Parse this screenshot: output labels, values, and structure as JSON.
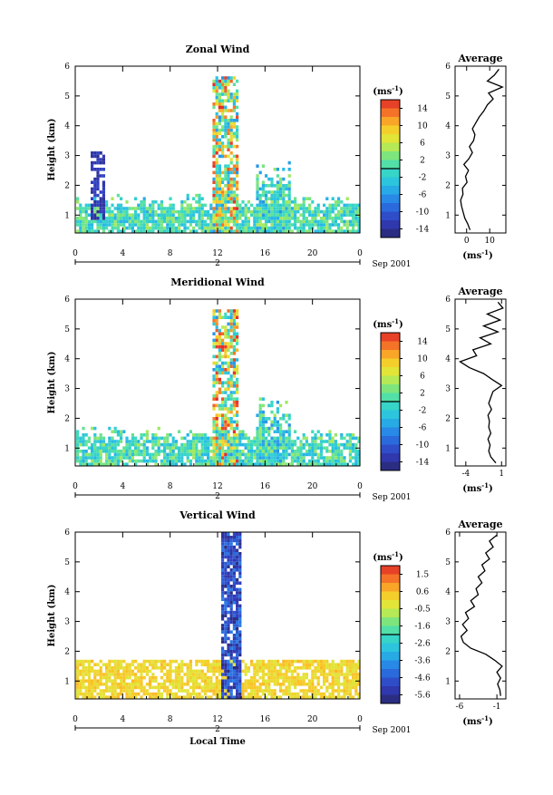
{
  "chart_data": [
    {
      "type": "heatmap",
      "title": "Zonal Wind",
      "ylabel": "Height (km)",
      "yticks": [
        "1",
        "2",
        "3",
        "4",
        "5",
        "6"
      ],
      "xticks": [
        "0",
        "4",
        "8",
        "12",
        "16",
        "20",
        "0"
      ],
      "ylim": [
        0.4,
        6.0
      ],
      "xlim": [
        0,
        24
      ],
      "date_day": "2",
      "date_label": "Sep 2001",
      "colorbar": {
        "unit": "(ms",
        "unit_exp": "-1",
        "unit_close": ")",
        "ticks": [
          "14",
          "10",
          "6",
          "2",
          "-2",
          "-6",
          "-10",
          "-14"
        ],
        "range": [
          -16,
          16
        ]
      },
      "profile": {
        "title": "Average",
        "xticks": [
          "0",
          "10"
        ],
        "xlim": [
          -5,
          17
        ],
        "xlabel": "(ms",
        "xlabel_exp": "-1",
        "xlabel_close": ")",
        "heights": [
          0.5,
          0.7,
          0.9,
          1.1,
          1.3,
          1.5,
          1.7,
          1.9,
          2.1,
          2.3,
          2.5,
          2.7,
          2.9,
          3.1,
          3.3,
          3.5,
          3.7,
          3.9,
          4.1,
          4.3,
          4.5,
          4.7,
          4.9,
          5.1,
          5.3,
          5.5,
          5.7,
          5.9
        ],
        "values": [
          1.5,
          0.5,
          -0.8,
          -1.5,
          -2.2,
          -2.6,
          -1.6,
          -1.8,
          0.2,
          -0.5,
          0.8,
          -1.2,
          1.0,
          2.5,
          1.2,
          3.0,
          3.6,
          2.5,
          4.0,
          5.5,
          7.5,
          9.0,
          11.5,
          9.5,
          15.5,
          9.0,
          12.0,
          14.0
        ]
      }
    },
    {
      "type": "heatmap",
      "title": "Meridional Wind",
      "ylabel": "Height (km)",
      "yticks": [
        "1",
        "2",
        "3",
        "4",
        "5",
        "6"
      ],
      "xticks": [
        "0",
        "4",
        "8",
        "12",
        "16",
        "20",
        "0"
      ],
      "ylim": [
        0.4,
        6.0
      ],
      "xlim": [
        0,
        24
      ],
      "date_day": "2",
      "date_label": "Sep 2001",
      "colorbar": {
        "unit": "(ms",
        "unit_exp": "-1",
        "unit_close": ")",
        "ticks": [
          "14",
          "10",
          "6",
          "2",
          "-2",
          "-6",
          "-10",
          "-14"
        ],
        "range": [
          -16,
          16
        ]
      },
      "profile": {
        "title": "Average",
        "xticks": [
          "-4",
          "1"
        ],
        "xlim": [
          -5.5,
          1.6
        ],
        "xlabel": "(ms",
        "xlabel_exp": "-1",
        "xlabel_close": ")",
        "heights": [
          0.5,
          0.7,
          0.9,
          1.1,
          1.3,
          1.5,
          1.7,
          1.9,
          2.1,
          2.3,
          2.5,
          2.7,
          2.9,
          3.1,
          3.3,
          3.5,
          3.7,
          3.9,
          4.1,
          4.3,
          4.5,
          4.7,
          4.9,
          5.1,
          5.3,
          5.5,
          5.7,
          5.9
        ],
        "values": [
          0.2,
          -0.5,
          -0.8,
          -0.6,
          -0.9,
          -0.5,
          -0.8,
          -0.7,
          -0.9,
          -0.4,
          -0.8,
          -0.5,
          -0.2,
          1.0,
          -0.3,
          -1.5,
          -3.5,
          -4.8,
          -2.5,
          -3.0,
          -0.5,
          -2.0,
          0.5,
          -1.5,
          0.8,
          -1.0,
          1.2,
          0.5
        ]
      }
    },
    {
      "type": "heatmap",
      "title": "Vertical Wind",
      "ylabel": "Height (km)",
      "xlabel": "Local Time",
      "yticks": [
        "1",
        "2",
        "3",
        "4",
        "5",
        "6"
      ],
      "xticks": [
        "0",
        "4",
        "8",
        "12",
        "16",
        "20",
        "0"
      ],
      "ylim": [
        0.4,
        6.0
      ],
      "xlim": [
        0,
        24
      ],
      "date_day": "2",
      "date_label": "Sep 2001",
      "colorbar": {
        "unit": "(ms",
        "unit_exp": "-1",
        "unit_close": ")",
        "ticks": [
          "1.5",
          "0.6",
          "-0.5",
          "-1.6",
          "-2.6",
          "-3.6",
          "-4.6",
          "-5.6"
        ],
        "range": [
          -6.1,
          2.0
        ]
      },
      "profile": {
        "title": "Average",
        "xticks": [
          "-6",
          "-1"
        ],
        "xlim": [
          -6.6,
          0.2
        ],
        "xlabel": "(ms",
        "xlabel_exp": "-1",
        "xlabel_close": ")",
        "heights": [
          0.5,
          0.7,
          0.9,
          1.1,
          1.3,
          1.5,
          1.7,
          1.9,
          2.1,
          2.3,
          2.5,
          2.7,
          2.9,
          3.1,
          3.3,
          3.5,
          3.7,
          3.9,
          4.1,
          4.3,
          4.5,
          4.7,
          4.9,
          5.1,
          5.3,
          5.5,
          5.7,
          5.9
        ],
        "values": [
          -0.5,
          -0.6,
          -0.9,
          -0.5,
          -1.0,
          -0.3,
          -1.3,
          -2.5,
          -4.5,
          -5.5,
          -5.8,
          -5.0,
          -5.6,
          -4.8,
          -5.2,
          -4.0,
          -4.5,
          -3.5,
          -3.8,
          -3.0,
          -3.5,
          -2.6,
          -3.0,
          -2.0,
          -2.5,
          -1.5,
          -2.0,
          -1.0
        ]
      }
    }
  ]
}
